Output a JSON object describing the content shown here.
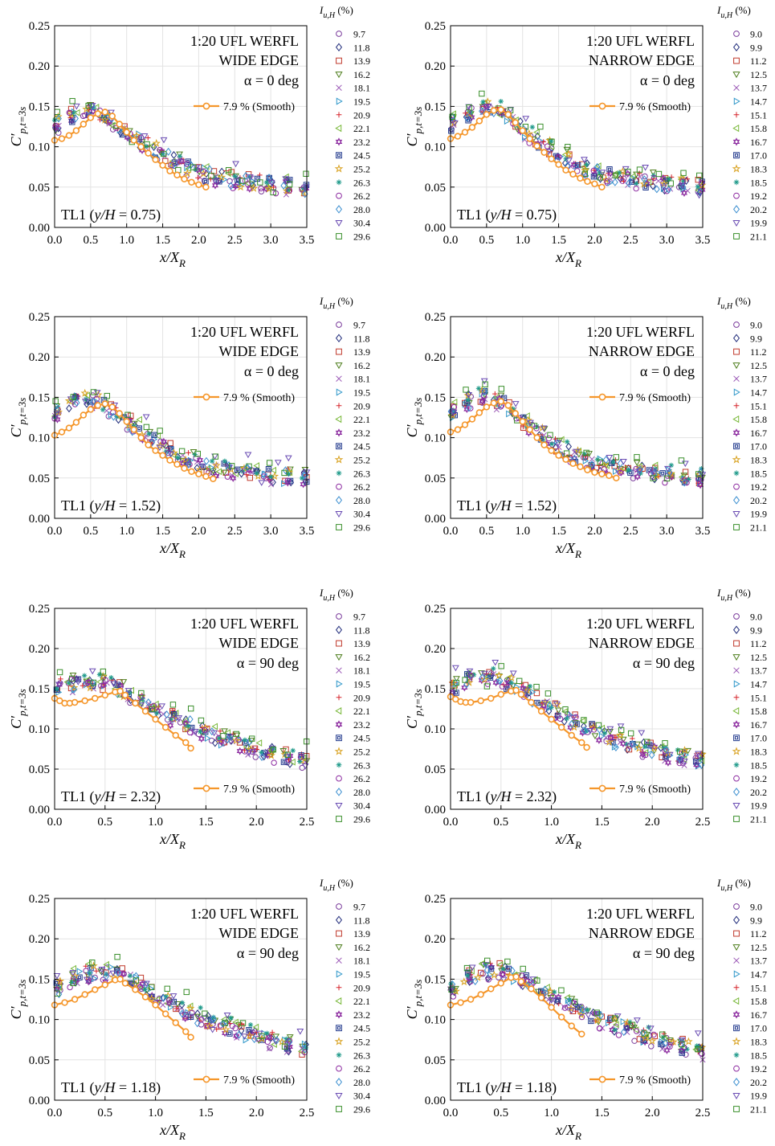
{
  "figure": {
    "smooth_label": "7.9 % (Smooth)",
    "legend_title_prefix": "I",
    "legend_title_sub": "u,H",
    "legend_title_suffix": " (%)",
    "ylabel_main": "C′",
    "ylabel_sub": "p,t=3s",
    "xlabel_main": "x/X",
    "xlabel_sub": "R",
    "wide_intensities": [
      "9.7",
      "11.8",
      "13.9",
      "16.2",
      "18.1",
      "19.5",
      "20.9",
      "22.1",
      "23.2",
      "24.5",
      "25.2",
      "26.3",
      "26.2",
      "28.0",
      "30.4",
      "29.6"
    ],
    "narrow_intensities": [
      "9.0",
      "9.9",
      "11.2",
      "12.5",
      "13.7",
      "14.7",
      "15.1",
      "15.8",
      "16.7",
      "17.0",
      "18.3",
      "18.5",
      "19.2",
      "20.2",
      "19.9",
      "21.1"
    ],
    "colors": {
      "smooth": "#f5962a"
    }
  },
  "panels": [
    {
      "title1": "1:20 UFL WERFL",
      "title2": "WIDE EDGE",
      "title3": "α = 0 deg",
      "tap_text": "TL1 (y/H = 0.75)",
      "tap_pre": "TL1 (",
      "tap_var": "y/H",
      "tap_post": " = 0.75)"
    },
    {
      "title1": "1:20 UFL WERFL",
      "title2": "NARROW EDGE",
      "title3": "α = 0 deg",
      "tap_text": "TL1 (y/H = 0.75)",
      "tap_pre": "TL1 (",
      "tap_var": "y/H",
      "tap_post": " = 0.75)"
    },
    {
      "title1": "1:20 UFL WERFL",
      "title2": "WIDE EDGE",
      "title3": "α = 0 deg",
      "tap_text": "TL1 (y/H = 1.52)",
      "tap_pre": "TL1 (",
      "tap_var": "y/H",
      "tap_post": " = 1.52)"
    },
    {
      "title1": "1:20 UFL WERFL",
      "title2": "NARROW EDGE",
      "title3": "α = 0 deg",
      "tap_text": "TL1 (y/H = 1.52)",
      "tap_pre": "TL1 (",
      "tap_var": "y/H",
      "tap_post": " = 1.52)"
    },
    {
      "title1": "1:20 UFL WERFL",
      "title2": "WIDE EDGE",
      "title3": "α = 90 deg",
      "tap_text": "TL1 (y/H = 2.32)",
      "tap_pre": "TL1 (",
      "tap_var": "y/H",
      "tap_post": " = 2.32)"
    },
    {
      "title1": "1:20 UFL WERFL",
      "title2": "NARROW EDGE",
      "title3": "α = 90 deg",
      "tap_text": "TL1 (y/H = 2.32)",
      "tap_pre": "TL1 (",
      "tap_var": "y/H",
      "tap_post": " = 2.32)"
    },
    {
      "title1": "1:20 UFL WERFL",
      "title2": "WIDE EDGE",
      "title3": "α = 90 deg",
      "tap_text": "TL1 (y/H = 1.18)",
      "tap_pre": "TL1 (",
      "tap_var": "y/H",
      "tap_post": " = 1.18)"
    },
    {
      "title1": "1:20 UFL WERFL",
      "title2": "NARROW EDGE",
      "title3": "α = 90 deg",
      "tap_text": "TL1 (y/H = 1.18)",
      "tap_pre": "TL1 (",
      "tap_var": "y/H",
      "tap_post": " = 1.18)"
    }
  ],
  "chart_data": [
    {
      "type": "scatter",
      "panel": 0,
      "xlabel": "x/X_R",
      "ylabel": "C'_p,t=3s",
      "xlim": [
        0,
        3.5
      ],
      "ylim": [
        0,
        0.25
      ],
      "xticks": [
        "0.0",
        "0.5",
        "1.0",
        "1.5",
        "2.0",
        "2.5",
        "3.0",
        "3.5"
      ],
      "yticks": [
        "0.00",
        "0.05",
        "0.10",
        "0.15",
        "0.20",
        "0.25"
      ],
      "smooth": {
        "x": [
          0.0,
          0.1,
          0.2,
          0.3,
          0.4,
          0.5,
          0.6,
          0.7,
          0.8,
          0.9,
          1.0,
          1.1,
          1.2,
          1.3,
          1.4,
          1.5,
          1.6,
          1.7,
          1.8,
          1.9,
          2.0,
          2.1
        ],
        "y": [
          0.108,
          0.11,
          0.114,
          0.12,
          0.128,
          0.136,
          0.141,
          0.143,
          0.138,
          0.128,
          0.118,
          0.108,
          0.1,
          0.092,
          0.084,
          0.077,
          0.07,
          0.065,
          0.06,
          0.056,
          0.053,
          0.05
        ]
      },
      "envelope": {
        "x": [
          0.0,
          0.3,
          0.5,
          0.8,
          1.0,
          1.5,
          2.0,
          2.5,
          3.0,
          3.5
        ],
        "y": [
          0.125,
          0.142,
          0.145,
          0.132,
          0.118,
          0.09,
          0.068,
          0.058,
          0.054,
          0.05
        ]
      }
    },
    {
      "type": "scatter",
      "panel": 1,
      "xlabel": "x/X_R",
      "ylabel": "C'_p,t=3s",
      "xlim": [
        0,
        3.5
      ],
      "ylim": [
        0,
        0.25
      ],
      "xticks": [
        "0.0",
        "0.5",
        "1.0",
        "1.5",
        "2.0",
        "2.5",
        "3.0",
        "3.5"
      ],
      "yticks": [
        "0.00",
        "0.05",
        "0.10",
        "0.15",
        "0.20",
        "0.25"
      ],
      "smooth": {
        "x": [
          0.0,
          0.1,
          0.2,
          0.3,
          0.4,
          0.5,
          0.6,
          0.7,
          0.8,
          0.9,
          1.0,
          1.1,
          1.2,
          1.3,
          1.4,
          1.5,
          1.6,
          1.7,
          1.8,
          1.9,
          2.0,
          2.1
        ],
        "y": [
          0.11,
          0.113,
          0.118,
          0.124,
          0.132,
          0.14,
          0.145,
          0.146,
          0.14,
          0.13,
          0.12,
          0.11,
          0.101,
          0.093,
          0.085,
          0.078,
          0.071,
          0.066,
          0.061,
          0.057,
          0.054,
          0.05
        ]
      },
      "envelope": {
        "x": [
          0.0,
          0.3,
          0.5,
          0.7,
          1.0,
          1.5,
          2.0,
          2.5,
          3.0,
          3.5
        ],
        "y": [
          0.128,
          0.145,
          0.15,
          0.145,
          0.122,
          0.09,
          0.068,
          0.06,
          0.055,
          0.05
        ]
      }
    },
    {
      "type": "scatter",
      "panel": 2,
      "xlabel": "x/X_R",
      "ylabel": "C'_p,t=3s",
      "xlim": [
        0,
        3.5
      ],
      "ylim": [
        0,
        0.25
      ],
      "xticks": [
        "0.0",
        "0.5",
        "1.0",
        "1.5",
        "2.0",
        "2.5",
        "3.0",
        "3.5"
      ],
      "yticks": [
        "0.00",
        "0.05",
        "0.10",
        "0.15",
        "0.20",
        "0.25"
      ],
      "smooth": {
        "x": [
          0.0,
          0.1,
          0.2,
          0.3,
          0.4,
          0.5,
          0.6,
          0.7,
          0.8,
          0.9,
          1.0,
          1.1,
          1.2,
          1.3,
          1.4,
          1.5,
          1.6,
          1.7,
          1.8,
          1.9,
          2.0,
          2.1,
          2.2
        ],
        "y": [
          0.103,
          0.107,
          0.112,
          0.119,
          0.128,
          0.135,
          0.14,
          0.142,
          0.138,
          0.13,
          0.12,
          0.11,
          0.1,
          0.091,
          0.084,
          0.078,
          0.072,
          0.067,
          0.062,
          0.058,
          0.055,
          0.052,
          0.049
        ]
      },
      "envelope": {
        "x": [
          0.0,
          0.3,
          0.5,
          0.8,
          1.0,
          1.5,
          2.0,
          2.5,
          3.0,
          3.5
        ],
        "y": [
          0.13,
          0.15,
          0.148,
          0.135,
          0.122,
          0.09,
          0.068,
          0.058,
          0.054,
          0.05
        ]
      }
    },
    {
      "type": "scatter",
      "panel": 3,
      "xlabel": "x/X_R",
      "ylabel": "C'_p,t=3s",
      "xlim": [
        0,
        3.5
      ],
      "ylim": [
        0,
        0.25
      ],
      "xticks": [
        "0.0",
        "0.5",
        "1.0",
        "1.5",
        "2.0",
        "2.5",
        "3.0",
        "3.5"
      ],
      "yticks": [
        "0.00",
        "0.05",
        "0.10",
        "0.15",
        "0.20",
        "0.25"
      ],
      "smooth": {
        "x": [
          0.0,
          0.1,
          0.2,
          0.3,
          0.4,
          0.5,
          0.6,
          0.7,
          0.8,
          0.9,
          1.0,
          1.1,
          1.2,
          1.3,
          1.4,
          1.5,
          1.6,
          1.7,
          1.8,
          1.9,
          2.0,
          2.1,
          2.2,
          2.3
        ],
        "y": [
          0.107,
          0.11,
          0.116,
          0.123,
          0.131,
          0.138,
          0.143,
          0.145,
          0.14,
          0.13,
          0.12,
          0.11,
          0.1,
          0.091,
          0.084,
          0.078,
          0.073,
          0.068,
          0.064,
          0.06,
          0.057,
          0.055,
          0.053,
          0.05
        ]
      },
      "envelope": {
        "x": [
          0.0,
          0.3,
          0.5,
          0.7,
          1.0,
          1.5,
          2.0,
          2.5,
          3.0,
          3.5
        ],
        "y": [
          0.13,
          0.15,
          0.15,
          0.145,
          0.12,
          0.088,
          0.068,
          0.06,
          0.056,
          0.05
        ]
      }
    },
    {
      "type": "scatter",
      "panel": 4,
      "xlabel": "x/X_R",
      "ylabel": "C'_p,t=3s",
      "xlim": [
        0,
        2.5
      ],
      "ylim": [
        0,
        0.25
      ],
      "xticks": [
        "0.0",
        "0.5",
        "1.0",
        "1.5",
        "2.0",
        "2.5"
      ],
      "yticks": [
        "0.00",
        "0.05",
        "0.10",
        "0.15",
        "0.20",
        "0.25"
      ],
      "smooth": {
        "x": [
          0.0,
          0.05,
          0.1,
          0.15,
          0.2,
          0.3,
          0.4,
          0.5,
          0.6,
          0.65,
          0.7,
          0.8,
          0.9,
          1.0,
          1.1,
          1.2,
          1.3,
          1.35
        ],
        "y": [
          0.138,
          0.135,
          0.132,
          0.132,
          0.133,
          0.135,
          0.138,
          0.142,
          0.146,
          0.147,
          0.142,
          0.132,
          0.122,
          0.112,
          0.102,
          0.092,
          0.083,
          0.076
        ]
      },
      "envelope": {
        "x": [
          0.0,
          0.2,
          0.4,
          0.6,
          0.8,
          1.0,
          1.5,
          2.0,
          2.5
        ],
        "y": [
          0.15,
          0.158,
          0.158,
          0.152,
          0.14,
          0.125,
          0.095,
          0.075,
          0.06
        ]
      }
    },
    {
      "type": "scatter",
      "panel": 5,
      "xlabel": "x/X_R",
      "ylabel": "C'_p,t=3s",
      "xlim": [
        0,
        2.5
      ],
      "ylim": [
        0,
        0.25
      ],
      "xticks": [
        "0.0",
        "0.5",
        "1.0",
        "1.5",
        "2.0",
        "2.5"
      ],
      "yticks": [
        "0.00",
        "0.05",
        "0.10",
        "0.15",
        "0.20",
        "0.25"
      ],
      "smooth": {
        "x": [
          0.0,
          0.05,
          0.1,
          0.15,
          0.2,
          0.3,
          0.4,
          0.5,
          0.6,
          0.65,
          0.7,
          0.8,
          0.9,
          1.0,
          1.1,
          1.2,
          1.3,
          1.35
        ],
        "y": [
          0.14,
          0.137,
          0.134,
          0.133,
          0.133,
          0.135,
          0.138,
          0.143,
          0.147,
          0.148,
          0.143,
          0.133,
          0.122,
          0.112,
          0.102,
          0.092,
          0.083,
          0.077
        ]
      },
      "envelope": {
        "x": [
          0.0,
          0.2,
          0.4,
          0.6,
          0.8,
          1.0,
          1.5,
          2.0,
          2.5
        ],
        "y": [
          0.152,
          0.162,
          0.165,
          0.158,
          0.142,
          0.125,
          0.092,
          0.073,
          0.062
        ]
      }
    },
    {
      "type": "scatter",
      "panel": 6,
      "xlabel": "x/X_R",
      "ylabel": "C'_p,t=3s",
      "xlim": [
        0,
        2.5
      ],
      "ylim": [
        0,
        0.25
      ],
      "xticks": [
        "0.0",
        "0.5",
        "1.0",
        "1.5",
        "2.0",
        "2.5"
      ],
      "yticks": [
        "0.00",
        "0.05",
        "0.10",
        "0.15",
        "0.20",
        "0.25"
      ],
      "smooth": {
        "x": [
          0.0,
          0.1,
          0.2,
          0.3,
          0.4,
          0.5,
          0.6,
          0.65,
          0.7,
          0.8,
          0.9,
          1.0,
          1.1,
          1.2,
          1.3,
          1.35
        ],
        "y": [
          0.118,
          0.121,
          0.125,
          0.131,
          0.137,
          0.143,
          0.149,
          0.15,
          0.145,
          0.137,
          0.128,
          0.118,
          0.107,
          0.096,
          0.085,
          0.078
        ]
      },
      "envelope": {
        "x": [
          0.0,
          0.2,
          0.4,
          0.6,
          0.8,
          1.0,
          1.5,
          2.0,
          2.5
        ],
        "y": [
          0.138,
          0.152,
          0.16,
          0.158,
          0.148,
          0.13,
          0.1,
          0.08,
          0.062
        ]
      }
    },
    {
      "type": "scatter",
      "panel": 7,
      "xlabel": "x/X_R",
      "ylabel": "C'_p,t=3s",
      "xlim": [
        0,
        2.5
      ],
      "ylim": [
        0,
        0.25
      ],
      "xticks": [
        "0.0",
        "0.5",
        "1.0",
        "1.5",
        "2.0",
        "2.5"
      ],
      "yticks": [
        "0.00",
        "0.05",
        "0.10",
        "0.15",
        "0.20",
        "0.25"
      ],
      "smooth": {
        "x": [
          0.0,
          0.1,
          0.2,
          0.3,
          0.4,
          0.5,
          0.6,
          0.65,
          0.7,
          0.8,
          0.9,
          1.0,
          1.1,
          1.2,
          1.3
        ],
        "y": [
          0.118,
          0.121,
          0.125,
          0.131,
          0.138,
          0.145,
          0.152,
          0.153,
          0.147,
          0.138,
          0.127,
          0.115,
          0.103,
          0.092,
          0.082
        ]
      },
      "envelope": {
        "x": [
          0.0,
          0.2,
          0.4,
          0.6,
          0.8,
          1.0,
          1.5,
          2.0,
          2.5
        ],
        "y": [
          0.138,
          0.155,
          0.162,
          0.158,
          0.145,
          0.128,
          0.098,
          0.078,
          0.062
        ]
      }
    }
  ]
}
